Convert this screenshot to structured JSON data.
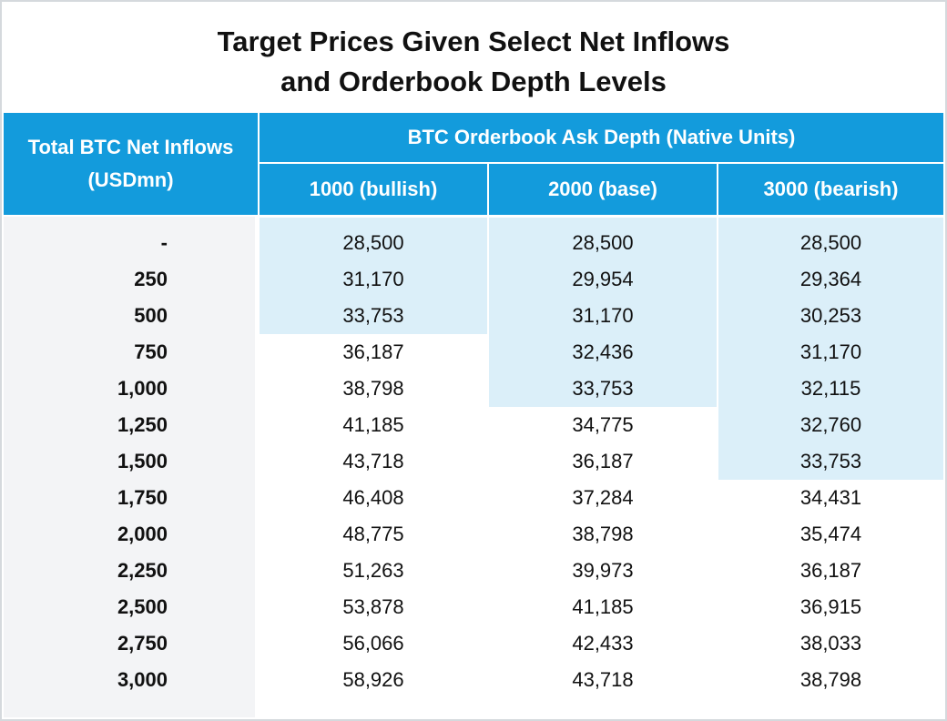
{
  "title_lines": [
    "Target Prices Given Select Net Inflows",
    "and Orderbook Depth Levels"
  ],
  "colors": {
    "header": "#139bdc",
    "highlight": "#dbeff9",
    "row_label_pane": "#f3f4f6"
  },
  "chart_data": {
    "type": "table",
    "title": "Target Prices Given Select Net Inflows and Orderbook Depth Levels",
    "row_header": "Total BTC Net Inflows (USDmn)",
    "column_group_header": "BTC Orderbook Ask Depth (Native Units)",
    "columns": [
      "1000 (bullish)",
      "2000 (base)",
      "3000 (bearish)"
    ],
    "rows": [
      "-",
      "250",
      "500",
      "750",
      "1,000",
      "1,250",
      "1,500",
      "1,750",
      "2,000",
      "2,250",
      "2,500",
      "2,750",
      "3,000"
    ],
    "values": [
      [
        "28,500",
        "28,500",
        "28,500"
      ],
      [
        "31,170",
        "29,954",
        "29,364"
      ],
      [
        "33,753",
        "31,170",
        "30,253"
      ],
      [
        "36,187",
        "32,436",
        "31,170"
      ],
      [
        "38,798",
        "33,753",
        "32,115"
      ],
      [
        "41,185",
        "34,775",
        "32,760"
      ],
      [
        "43,718",
        "36,187",
        "33,753"
      ],
      [
        "46,408",
        "37,284",
        "34,431"
      ],
      [
        "48,775",
        "38,798",
        "35,474"
      ],
      [
        "51,263",
        "39,973",
        "36,187"
      ],
      [
        "53,878",
        "41,185",
        "36,915"
      ],
      [
        "56,066",
        "42,433",
        "38,033"
      ],
      [
        "58,926",
        "43,718",
        "38,798"
      ]
    ],
    "highlighted_rows_per_column": [
      3,
      5,
      7
    ]
  }
}
